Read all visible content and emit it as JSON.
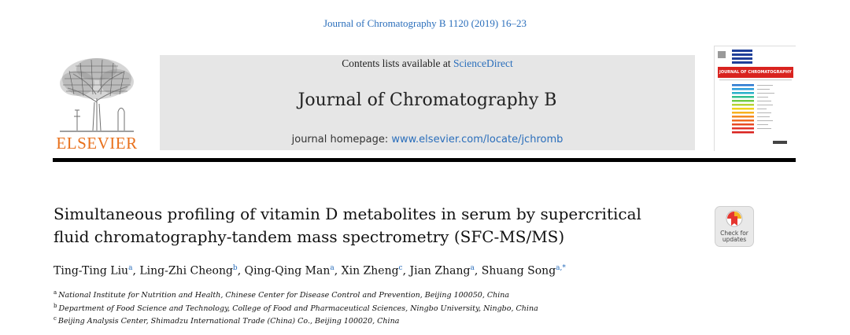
{
  "citation": "Journal of Chromatography B 1120 (2019) 16–23",
  "publisher": {
    "name": "ELSEVIER"
  },
  "header": {
    "contents_prefix": "Contents lists available at ",
    "contents_link": "ScienceDirect",
    "journal_name": "Journal of Chromatography B",
    "homepage_prefix": "journal homepage: ",
    "homepage_url": "www.elsevier.com/locate/jchromb"
  },
  "cover": {
    "title": "JOURNAL OF CHROMATOGRAPHY B"
  },
  "article": {
    "title_line1": "Simultaneous profiling of vitamin D metabolites in serum by supercritical",
    "title_line2": "fluid chromatography-tandem mass spectrometry (SFC-MS/MS)"
  },
  "crossmark": {
    "line1": "Check for",
    "line2": "updates"
  },
  "authors": [
    {
      "name": "Ting-Ting Liu",
      "aff": "a",
      "sep": ", "
    },
    {
      "name": "Ling-Zhi Cheong",
      "aff": "b",
      "sep": ", "
    },
    {
      "name": "Qing-Qing Man",
      "aff": "a",
      "sep": ", "
    },
    {
      "name": "Xin Zheng",
      "aff": "c",
      "sep": ", "
    },
    {
      "name": "Jian Zhang",
      "aff": "a",
      "sep": ", "
    },
    {
      "name": "Shuang Song",
      "aff": "a,*",
      "sep": ""
    }
  ],
  "affiliations": [
    {
      "label": "a",
      "text": "National Institute for Nutrition and Health, Chinese Center for Disease Control and Prevention, Beijing 100050, China"
    },
    {
      "label": "b",
      "text": "Department of Food Science and Technology, College of Food and Pharmaceutical Sciences, Ningbo University, Ningbo, China"
    },
    {
      "label": "c",
      "text": "Beijing Analysis Center, Shimadzu International Trade (China) Co., Beijing 100020, China"
    }
  ],
  "colors": {
    "link": "#2a6ebb",
    "elsevier_orange": "#e9711c",
    "band": "#e6e6e6",
    "cover_red": "#d9231f"
  }
}
